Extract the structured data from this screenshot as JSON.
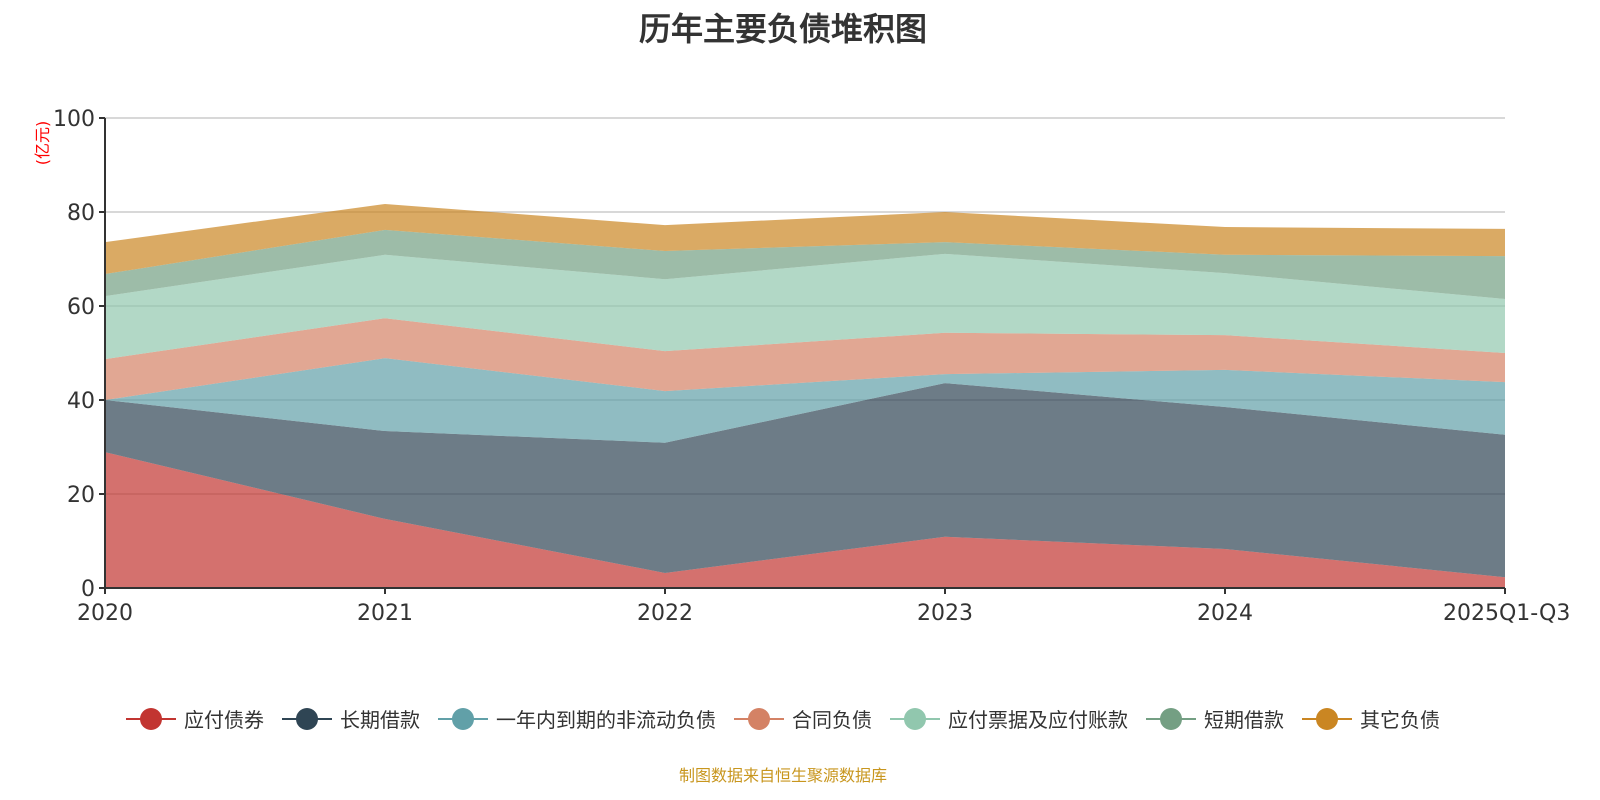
{
  "chart_data": {
    "type": "area",
    "stacked": true,
    "title": "历年主要负债堆积图",
    "ylabel": "(亿元)",
    "xlabel": "",
    "ylim": [
      0,
      100
    ],
    "yticks": [
      0,
      20,
      40,
      60,
      80,
      100
    ],
    "grid": true,
    "legend_position": "bottom",
    "categories": [
      "2020",
      "2021",
      "2022",
      "2023",
      "2024",
      "2025Q1-Q3"
    ],
    "series": [
      {
        "name": "应付债券",
        "color": "#c23531",
        "values": [
          28.9,
          14.7,
          3.2,
          10.9,
          8.3,
          2.3
        ]
      },
      {
        "name": "长期借款",
        "color": "#2f4554",
        "values": [
          11.1,
          18.7,
          27.7,
          32.7,
          30.2,
          30.3
        ]
      },
      {
        "name": "一年内到期的非流动负债",
        "color": "#61a0a8",
        "values": [
          0.0,
          15.5,
          11.0,
          1.9,
          7.9,
          11.2
        ]
      },
      {
        "name": "合同负债",
        "color": "#d48265",
        "values": [
          8.7,
          8.5,
          8.5,
          8.8,
          7.4,
          6.2
        ]
      },
      {
        "name": "应付票据及应付账款",
        "color": "#91c7ae",
        "values": [
          13.4,
          13.5,
          15.3,
          16.8,
          13.2,
          11.5
        ]
      },
      {
        "name": "短期借款",
        "color": "#749f83",
        "values": [
          4.7,
          5.3,
          6.0,
          2.5,
          3.9,
          9.1
        ]
      },
      {
        "name": "其它负债",
        "color": "#ca8622",
        "values": [
          6.8,
          5.5,
          5.5,
          6.4,
          5.9,
          5.8
        ]
      }
    ],
    "source_note": "制图数据来自恒生聚源数据库"
  }
}
